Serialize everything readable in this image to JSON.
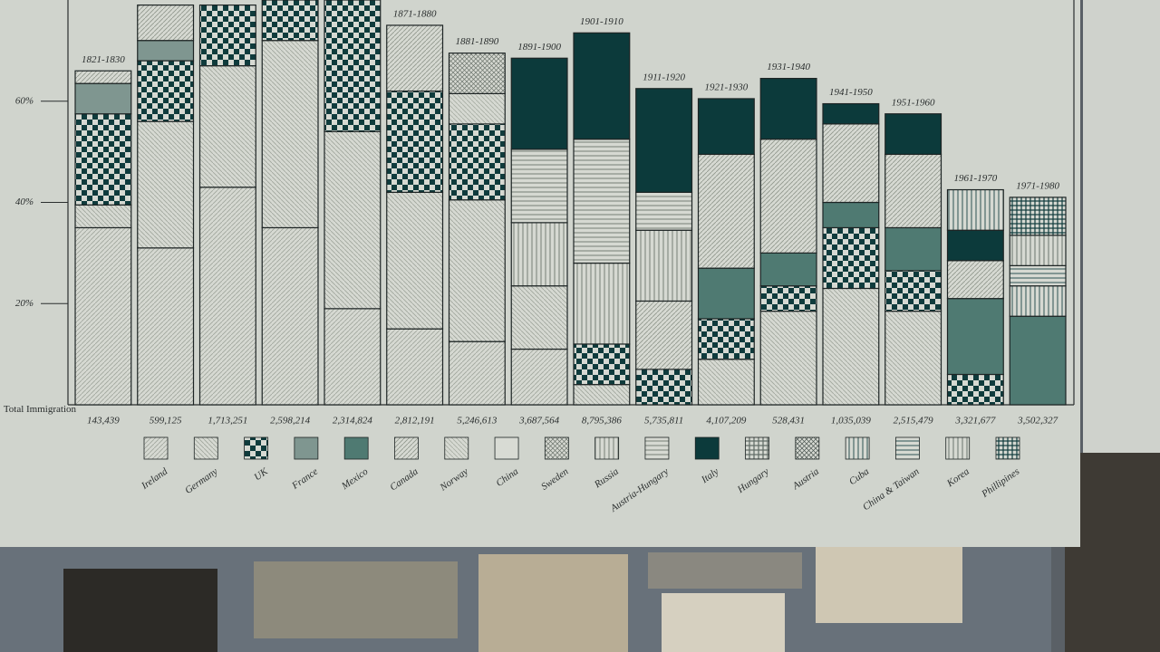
{
  "chart_data": {
    "type": "bar",
    "stacked": true,
    "categories": [
      "1821-1830",
      "1831-1840",
      "1841-1850",
      "1851-1860",
      "1861-1870",
      "1871-1880",
      "1881-1890",
      "1891-1900",
      "1901-1910",
      "1911-1920",
      "1921-1930",
      "1931-1940",
      "1941-1950",
      "1951-1960",
      "1961-1970",
      "1971-1980"
    ],
    "ylim": [
      0,
      80
    ],
    "yticks": [
      {
        "value": 20,
        "label": "20%"
      },
      {
        "value": 40,
        "label": "40%"
      },
      {
        "value": 60,
        "label": "60%"
      }
    ],
    "total_immigration": {
      "label": "Total Immigration",
      "values": [
        143439,
        599125,
        1713251,
        2598214,
        2314824,
        2812191,
        5246613,
        3687564,
        8795386,
        5735811,
        4107209,
        528431,
        1035039,
        2515479,
        3321677,
        3502327
      ],
      "value_labels": [
        "143,439",
        "599,125",
        "1,713,251",
        "2,598,214",
        "2,314,824",
        "2,812,191",
        "5,246,613",
        "3,687,564",
        "8,795,386",
        "5,735,811",
        "4,107,209",
        "528,431",
        "1,035,039",
        "2,515,479",
        "3,321,677",
        "3,502,327"
      ]
    },
    "series": [
      {
        "name": "Ireland",
        "color": "#9fa59c",
        "pattern": "diag",
        "values": [
          35,
          31,
          43,
          35,
          19,
          15,
          12.5,
          11,
          null,
          null,
          null,
          null,
          null,
          null,
          null,
          null
        ]
      },
      {
        "name": "Germany",
        "color": "#9fa59c",
        "pattern": "diag2",
        "values": [
          4.5,
          25,
          24,
          37,
          35,
          27,
          28,
          12.5,
          4,
          null,
          9,
          18.5,
          23,
          18.5,
          null,
          null
        ]
      },
      {
        "name": "UK",
        "color": "#0f3b3c",
        "pattern": "checker",
        "values": [
          18,
          12,
          12,
          8,
          26,
          20,
          15,
          null,
          8,
          7,
          8,
          5,
          12,
          8,
          6,
          null
        ]
      },
      {
        "name": "France",
        "color": "#7f9690",
        "pattern": "solidlight",
        "values": [
          6,
          4,
          null,
          null,
          null,
          null,
          null,
          null,
          null,
          null,
          null,
          null,
          null,
          null,
          null,
          null
        ]
      },
      {
        "name": "Mexico",
        "color": "#4f7a72",
        "pattern": "solidlight",
        "values": [
          null,
          null,
          null,
          null,
          null,
          null,
          null,
          null,
          null,
          null,
          10,
          6.5,
          5,
          8.5,
          15,
          17.5
        ]
      },
      {
        "name": "Canada",
        "color": "#8e958b",
        "pattern": "diag",
        "values": [
          2.5,
          7,
          null,
          null,
          null,
          13,
          null,
          null,
          null,
          13.5,
          22.5,
          22.5,
          15.5,
          14.5,
          7.5,
          null
        ]
      },
      {
        "name": "Norway",
        "color": "#a7ada3",
        "pattern": "diag2",
        "values": [
          null,
          null,
          null,
          null,
          null,
          null,
          6,
          null,
          null,
          null,
          null,
          null,
          null,
          null,
          null,
          null
        ]
      },
      {
        "name": "China",
        "color": "#d8dbd4",
        "pattern": "plain",
        "values": [
          null,
          null,
          null,
          null,
          null,
          null,
          null,
          null,
          null,
          null,
          null,
          null,
          null,
          null,
          null,
          null
        ]
      },
      {
        "name": "Sweden",
        "color": "#6c746c",
        "pattern": "cross",
        "values": [
          null,
          null,
          null,
          null,
          null,
          null,
          8,
          null,
          null,
          null,
          null,
          null,
          null,
          null,
          null,
          null
        ]
      },
      {
        "name": "Russia",
        "color": "#6c746c",
        "pattern": "vlines",
        "values": [
          null,
          null,
          null,
          null,
          null,
          null,
          null,
          12.5,
          16,
          14,
          null,
          null,
          null,
          null,
          null,
          null
        ]
      },
      {
        "name": "Austria-Hungary",
        "color": "#6c746c",
        "pattern": "hlines",
        "values": [
          null,
          null,
          null,
          null,
          null,
          null,
          null,
          14.5,
          24.5,
          7.5,
          null,
          null,
          null,
          null,
          null,
          null
        ]
      },
      {
        "name": "Italy",
        "color": "#0c3a3b",
        "pattern": "solid",
        "values": [
          null,
          null,
          null,
          null,
          null,
          null,
          null,
          18,
          21,
          20.5,
          11,
          12,
          4,
          8,
          6,
          null
        ]
      },
      {
        "name": "Hungary",
        "color": "#5f6a64",
        "pattern": "grid",
        "values": [
          null,
          null,
          null,
          null,
          null,
          null,
          null,
          null,
          null,
          null,
          null,
          null,
          null,
          null,
          null,
          null
        ]
      },
      {
        "name": "Austria",
        "color": "#4b5651",
        "pattern": "cross",
        "values": [
          null,
          null,
          null,
          null,
          null,
          null,
          null,
          null,
          null,
          null,
          null,
          null,
          null,
          null,
          null,
          null
        ]
      },
      {
        "name": "Cuba",
        "color": "#1c4545",
        "pattern": "vlines",
        "values": [
          null,
          null,
          null,
          null,
          null,
          null,
          null,
          null,
          null,
          null,
          null,
          null,
          null,
          null,
          8,
          6
        ]
      },
      {
        "name": "China & Taiwan",
        "color": "#1c4545",
        "pattern": "hlines",
        "values": [
          null,
          null,
          null,
          null,
          null,
          null,
          null,
          null,
          null,
          null,
          null,
          null,
          null,
          null,
          null,
          4
        ]
      },
      {
        "name": "Korea",
        "color": "#5f6a64",
        "pattern": "vlines",
        "values": [
          null,
          null,
          null,
          null,
          null,
          null,
          null,
          null,
          null,
          null,
          null,
          null,
          null,
          null,
          null,
          6
        ]
      },
      {
        "name": "Phillipines",
        "color": "#0f3b3c",
        "pattern": "grid",
        "values": [
          null,
          null,
          null,
          null,
          null,
          null,
          null,
          null,
          null,
          null,
          null,
          null,
          null,
          null,
          null,
          7.5
        ]
      }
    ]
  }
}
